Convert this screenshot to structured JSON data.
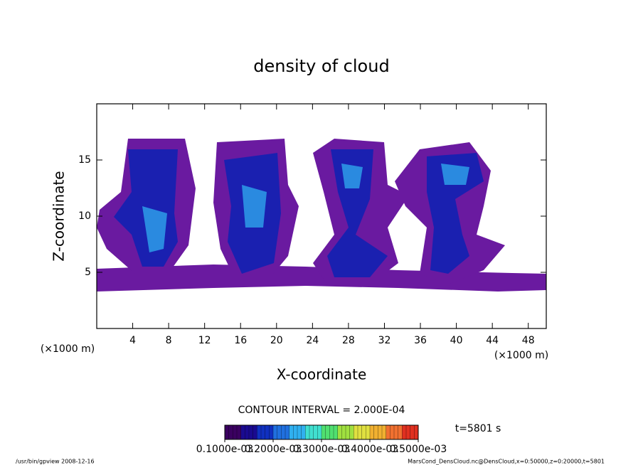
{
  "chart_data": {
    "type": "contour",
    "title": "density of cloud",
    "x_label": "X-coordinate",
    "y_label": "Z-coordinate",
    "x_unit": "(×1000 m)",
    "y_unit": "(×1000 m)",
    "xlim": [
      0,
      50
    ],
    "ylim": [
      0,
      20
    ],
    "xticks": [
      4,
      8,
      12,
      16,
      20,
      24,
      28,
      32,
      36,
      40,
      44,
      48
    ],
    "yticks": [
      5,
      10,
      15
    ],
    "contour_interval": "CONTOUR INTERVAL = 2.000E-04",
    "time_label": "t=5801 s",
    "colorbar": {
      "lim": [
        0.0001,
        0.0005
      ],
      "ticks": [
        {
          "value": 0.0001,
          "label": "0.1000e-03"
        },
        {
          "value": 0.0002,
          "label": "0.2000e-03"
        },
        {
          "value": 0.0003,
          "label": "0.3000e-03"
        },
        {
          "value": 0.0004,
          "label": "0.4000e-03"
        },
        {
          "value": 0.0005,
          "label": "0.5000e-03"
        }
      ],
      "colors": [
        "#3a0060",
        "#1a0a90",
        "#1030c0",
        "#2070e0",
        "#30b0f0",
        "#40e0d0",
        "#50e070",
        "#a0e040",
        "#e0e040",
        "#f0b030",
        "#f07030",
        "#e03020"
      ]
    },
    "footer_left": "/usr/bin/gpview  2008-12-16",
    "footer_right": "MarsCond_DensCloud.nc@DensCloud,x=0:50000,z=0:20000,t=5801"
  }
}
